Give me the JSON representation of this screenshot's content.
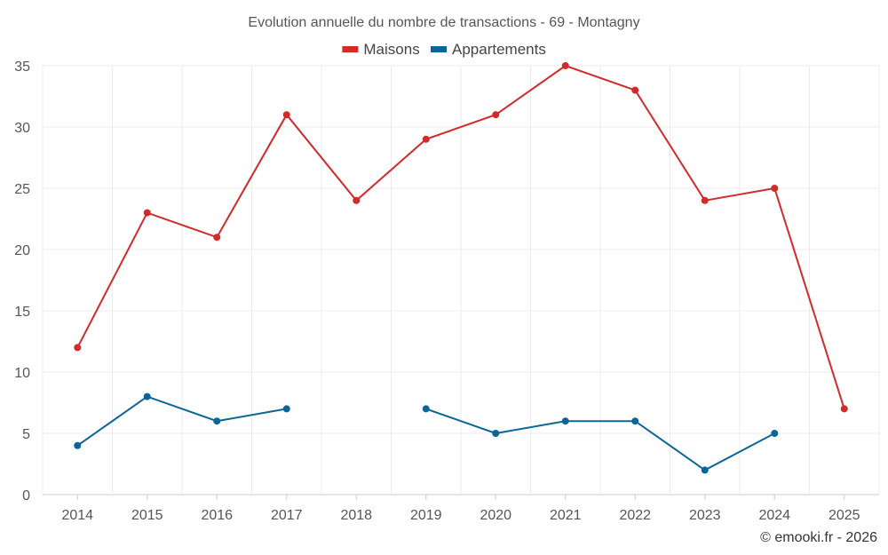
{
  "chart_data": {
    "type": "line",
    "title": "Evolution annuelle du nombre de transactions - 69 - Montagny",
    "categories": [
      "2014",
      "2015",
      "2016",
      "2017",
      "2018",
      "2019",
      "2020",
      "2021",
      "2022",
      "2023",
      "2024",
      "2025"
    ],
    "series": [
      {
        "name": "Maisons",
        "color": "#d32a2a",
        "values": [
          12,
          23,
          21,
          31,
          24,
          29,
          31,
          35,
          33,
          24,
          25,
          7
        ]
      },
      {
        "name": "Appartements",
        "color": "#0a6699",
        "values": [
          4,
          8,
          6,
          7,
          null,
          7,
          5,
          6,
          6,
          2,
          5,
          null
        ]
      }
    ],
    "ylim": [
      0,
      35
    ],
    "yticks": [
      0,
      5,
      10,
      15,
      20,
      25,
      30,
      35
    ],
    "xlabel": "",
    "ylabel": "",
    "grid": true,
    "legend": "top-center"
  },
  "credit": "© emooki.fr - 2026"
}
